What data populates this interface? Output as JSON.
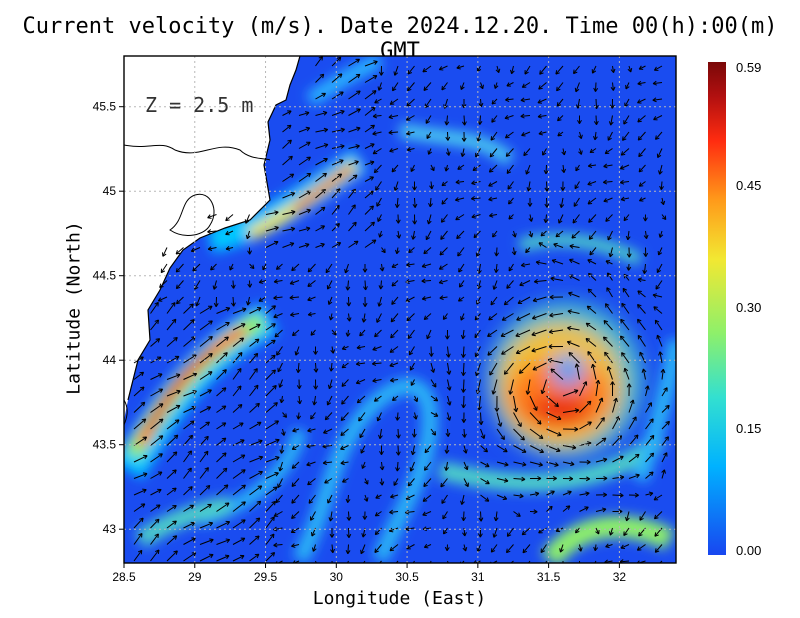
{
  "title": "Current velocity (m/s). Date 2024.12.20. Time 00(h):00(m) GMT",
  "xlabel": "Longitude (East)",
  "ylabel": "Latitude (North)",
  "depth_label": "Z = 2.5 m",
  "colorbar": {
    "ticks": [
      "0.59",
      "0.45",
      "0.30",
      "0.15",
      "0.00"
    ],
    "colors": [
      "#1846f0",
      "#00b2ff",
      "#33e0d0",
      "#8ef06a",
      "#f2e832",
      "#ff9a1a",
      "#ff2c10",
      "#b21010",
      "#7a0808"
    ]
  },
  "chart_data": {
    "type": "heatmap",
    "subtype": "ocean current velocity field with vector arrows",
    "xlim": [
      28.5,
      32.4
    ],
    "ylim": [
      42.8,
      45.8
    ],
    "xticks": [
      "28.5",
      "29",
      "29.5",
      "30",
      "30.5",
      "31",
      "31.5",
      "32"
    ],
    "yticks": [
      "43",
      "43.5",
      "44",
      "44.5",
      "45",
      "45.5"
    ],
    "value_range": [
      0.0,
      0.59
    ],
    "units": "m/s",
    "grid": true,
    "features": [
      {
        "name": "western boundary jet",
        "lon": 28.9,
        "lat": 43.9,
        "speed": 0.55
      },
      {
        "name": "northern coastal jet",
        "lon": 29.95,
        "lat": 45.05,
        "speed": 0.5
      },
      {
        "name": "anticyclonic eddy",
        "lon": 31.55,
        "lat": 43.8,
        "speed": 0.45
      },
      {
        "name": "southern eddy edge",
        "lon": 31.9,
        "lat": 42.9,
        "speed": 0.3
      }
    ]
  }
}
